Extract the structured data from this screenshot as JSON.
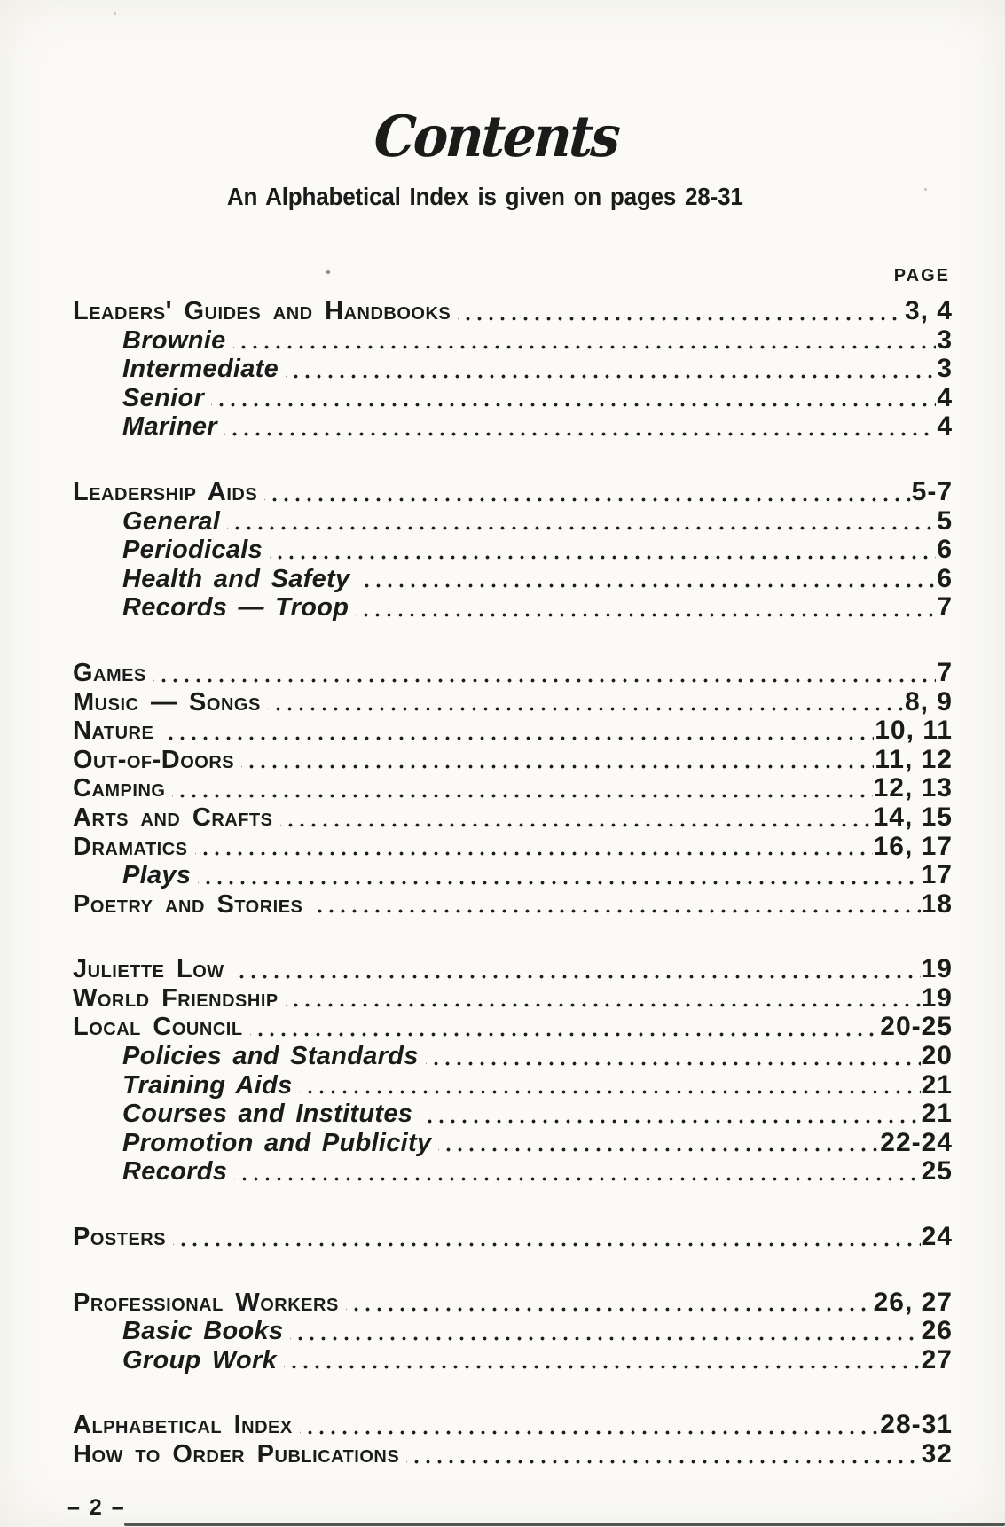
{
  "colors": {
    "ink": "#1b1b1b",
    "paper": "#fbfaf6"
  },
  "page": {
    "title": "Contents",
    "subtitle": "An Alphabetical Index is given on pages 28-31",
    "column_header": "PAGE",
    "footer": "– 2 –"
  },
  "toc": {
    "sections": [
      {
        "rows": [
          {
            "label": "Leaders' Guides and Handbooks",
            "page": "3, 4",
            "style": "main"
          },
          {
            "label": "Brownie",
            "page": "3",
            "style": "sub"
          },
          {
            "label": "Intermediate",
            "page": "3",
            "style": "sub"
          },
          {
            "label": "Senior",
            "page": "4",
            "style": "sub"
          },
          {
            "label": "Mariner",
            "page": "4",
            "style": "sub"
          }
        ]
      },
      {
        "rows": [
          {
            "label": "Leadership Aids",
            "page": "5-7",
            "style": "main"
          },
          {
            "label": "General",
            "page": "5",
            "style": "sub"
          },
          {
            "label": "Periodicals",
            "page": "6",
            "style": "sub"
          },
          {
            "label": "Health and Safety",
            "page": "6",
            "style": "sub"
          },
          {
            "label": "Records — Troop",
            "page": "7",
            "style": "sub"
          }
        ]
      },
      {
        "rows": [
          {
            "label": "Games",
            "page": "7",
            "style": "main"
          },
          {
            "label": "Music — Songs",
            "page": "8, 9",
            "style": "main"
          },
          {
            "label": "Nature",
            "page": "10, 11",
            "style": "main"
          },
          {
            "label": "Out-of-Doors",
            "page": "11, 12",
            "style": "main"
          },
          {
            "label": "Camping",
            "page": "12, 13",
            "style": "main"
          },
          {
            "label": "Arts and Crafts",
            "page": "14, 15",
            "style": "main"
          },
          {
            "label": "Dramatics",
            "page": "16, 17",
            "style": "main"
          },
          {
            "label": "Plays",
            "page": "17",
            "style": "sub"
          },
          {
            "label": "Poetry and Stories",
            "page": "18",
            "style": "main"
          }
        ]
      },
      {
        "rows": [
          {
            "label": "Juliette Low",
            "page": "19",
            "style": "main"
          },
          {
            "label": "World Friendship",
            "page": "19",
            "style": "main"
          },
          {
            "label": "Local Council",
            "page": "20-25",
            "style": "main"
          },
          {
            "label": "Policies and Standards",
            "page": "20",
            "style": "sub"
          },
          {
            "label": "Training Aids",
            "page": "21",
            "style": "sub"
          },
          {
            "label": "Courses and Institutes",
            "page": "21",
            "style": "sub"
          },
          {
            "label": "Promotion and Publicity",
            "page": "22-24",
            "style": "sub"
          },
          {
            "label": "Records",
            "page": "25",
            "style": "sub"
          }
        ]
      },
      {
        "rows": [
          {
            "label": "Posters",
            "page": "24",
            "style": "main"
          }
        ]
      },
      {
        "rows": [
          {
            "label": "Professional Workers",
            "page": "26, 27",
            "style": "main"
          },
          {
            "label": "Basic Books",
            "page": "26",
            "style": "sub"
          },
          {
            "label": "Group Work",
            "page": "27",
            "style": "sub"
          }
        ]
      },
      {
        "rows": [
          {
            "label": "Alphabetical Index",
            "page": "28-31",
            "style": "main"
          },
          {
            "label": "How to Order Publications",
            "page": "32",
            "style": "main"
          }
        ]
      }
    ]
  }
}
